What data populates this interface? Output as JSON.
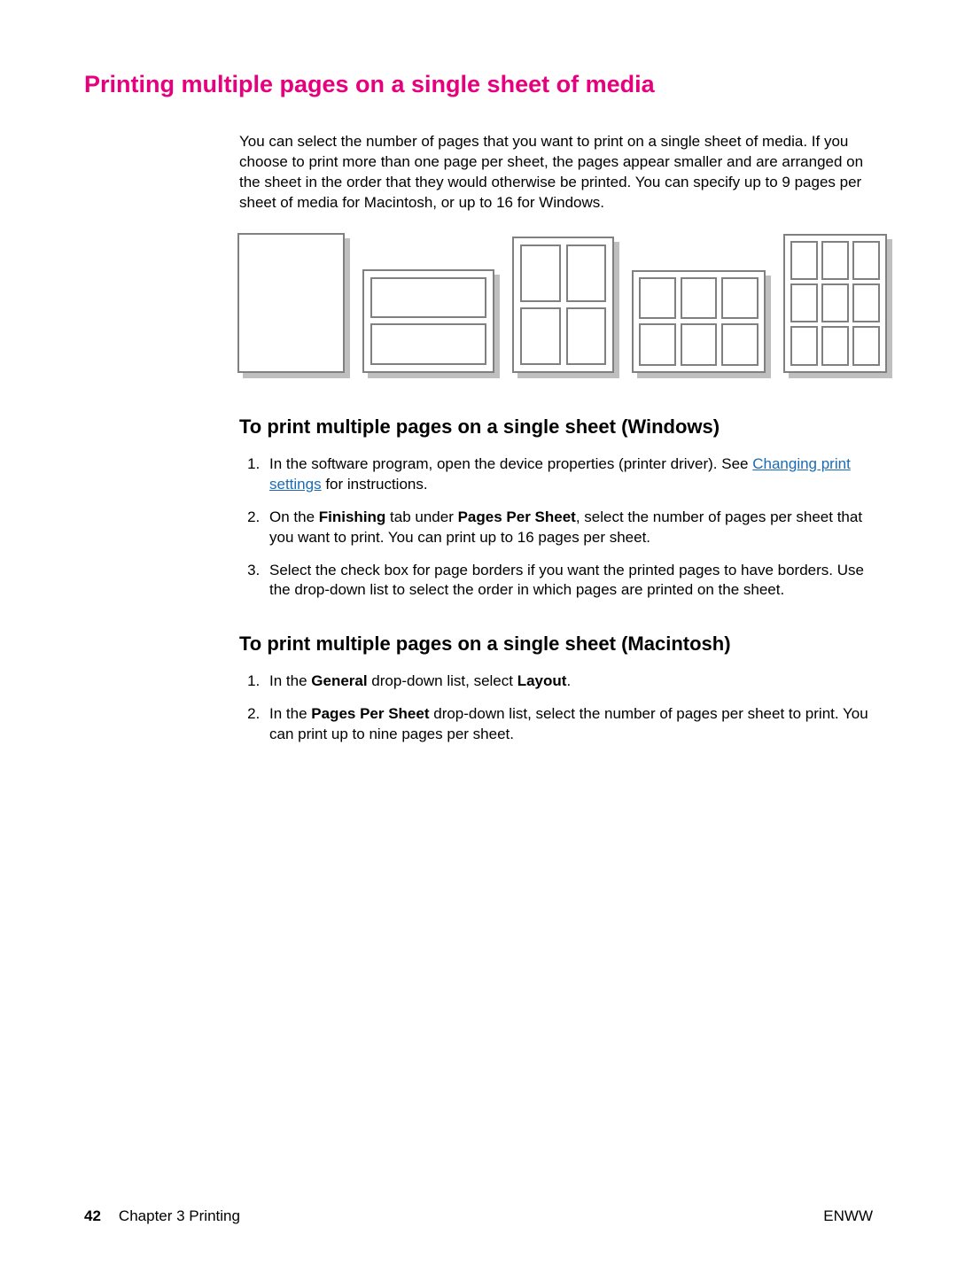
{
  "headings": {
    "main": "Printing multiple pages on a single sheet of media",
    "windows": "To print multiple pages on a single sheet (Windows)",
    "mac": "To print multiple pages on a single sheet (Macintosh)"
  },
  "intro": "You can select the number of pages that you want to print on a single sheet of media. If you choose to print more than one page per sheet, the pages appear smaller and are arranged on the sheet in the order that they would otherwise be printed. You can specify up to 9 pages per sheet of media for Macintosh, or up to 16 for Windows.",
  "windows_steps": {
    "s1_pre": "In the software program, open the device properties (printer driver). See ",
    "s1_link": "Changing print settings",
    "s1_post": " for instructions.",
    "s2_a": "On the ",
    "s2_b": "Finishing",
    "s2_c": " tab under ",
    "s2_d": "Pages Per Sheet",
    "s2_e": ", select the number of pages per sheet that you want to print. You can print up to 16 pages per sheet.",
    "s3": "Select the check box for page borders if you want the printed pages to have borders. Use the drop-down list to select the order in which pages are printed on the sheet."
  },
  "mac_steps": {
    "s1_a": "In the ",
    "s1_b": "General",
    "s1_c": " drop-down list, select ",
    "s1_d": "Layout",
    "s1_e": ".",
    "s2_a": "In the ",
    "s2_b": "Pages Per Sheet",
    "s2_c": " drop-down list, select the number of pages per sheet to print. You can print up to nine pages per sheet."
  },
  "diagram": {
    "sheets": [
      {
        "orientation": "portrait",
        "cols": 1,
        "rows": 1,
        "cells": 0
      },
      {
        "orientation": "landscape",
        "cols": 1,
        "rows": 2,
        "cells": 2
      },
      {
        "orientation": "portrait",
        "cols": 2,
        "rows": 2,
        "cells": 4
      },
      {
        "orientation": "landscape",
        "cols": 3,
        "rows": 2,
        "cells": 6
      },
      {
        "orientation": "portrait",
        "cols": 3,
        "rows": 3,
        "cells": 9
      }
    ],
    "border_color": "#808080",
    "shadow_color": "#bfbfbf"
  },
  "colors": {
    "heading": "#e6007e",
    "link": "#1a6bb5",
    "text": "#000000",
    "background": "#ffffff"
  },
  "footer": {
    "page_number": "42",
    "chapter": "Chapter 3  Printing",
    "right": "ENWW"
  }
}
